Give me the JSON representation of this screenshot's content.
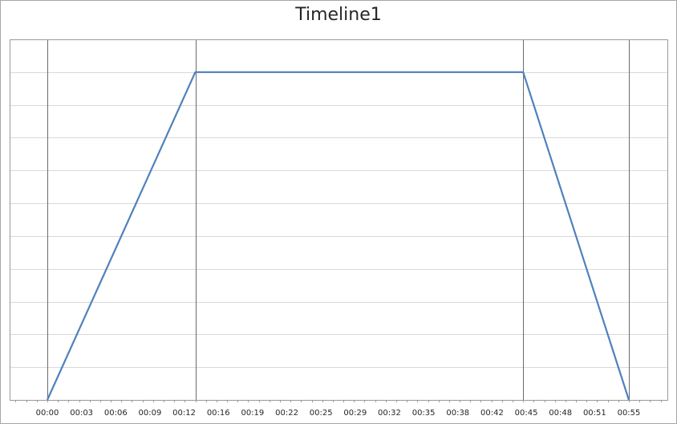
{
  "chart_data": {
    "type": "line",
    "title": "Timeline1",
    "xlabel": "",
    "ylabel": "",
    "x_unit": "mm:ss",
    "x_range": [
      "00:00",
      "00:55"
    ],
    "x_ticks": [
      "00:00",
      "00:03",
      "00:06",
      "00:09",
      "00:12",
      "00:16",
      "00:19",
      "00:22",
      "00:25",
      "00:29",
      "00:32",
      "00:35",
      "00:38",
      "00:42",
      "00:45",
      "00:48",
      "00:51",
      "00:55"
    ],
    "ylim": [
      0,
      1.1
    ],
    "y_gridlines": 11,
    "y_tick_labels_shown": false,
    "grid": true,
    "legend": "none",
    "markers_x": [
      "00:00",
      "00:14",
      "00:45",
      "00:55"
    ],
    "series": [
      {
        "color": "#4f81bd",
        "points": [
          {
            "x": "00:00",
            "y": 0
          },
          {
            "x": "00:14",
            "y": 1
          },
          {
            "x": "00:45",
            "y": 1
          },
          {
            "x": "00:55",
            "y": 0
          }
        ]
      }
    ]
  },
  "colors": {
    "plot_border": "#9a9a9a",
    "gridline": "#d9d9d9",
    "marker_line": "#6b6b6b",
    "axis": "#9a9a9a"
  }
}
